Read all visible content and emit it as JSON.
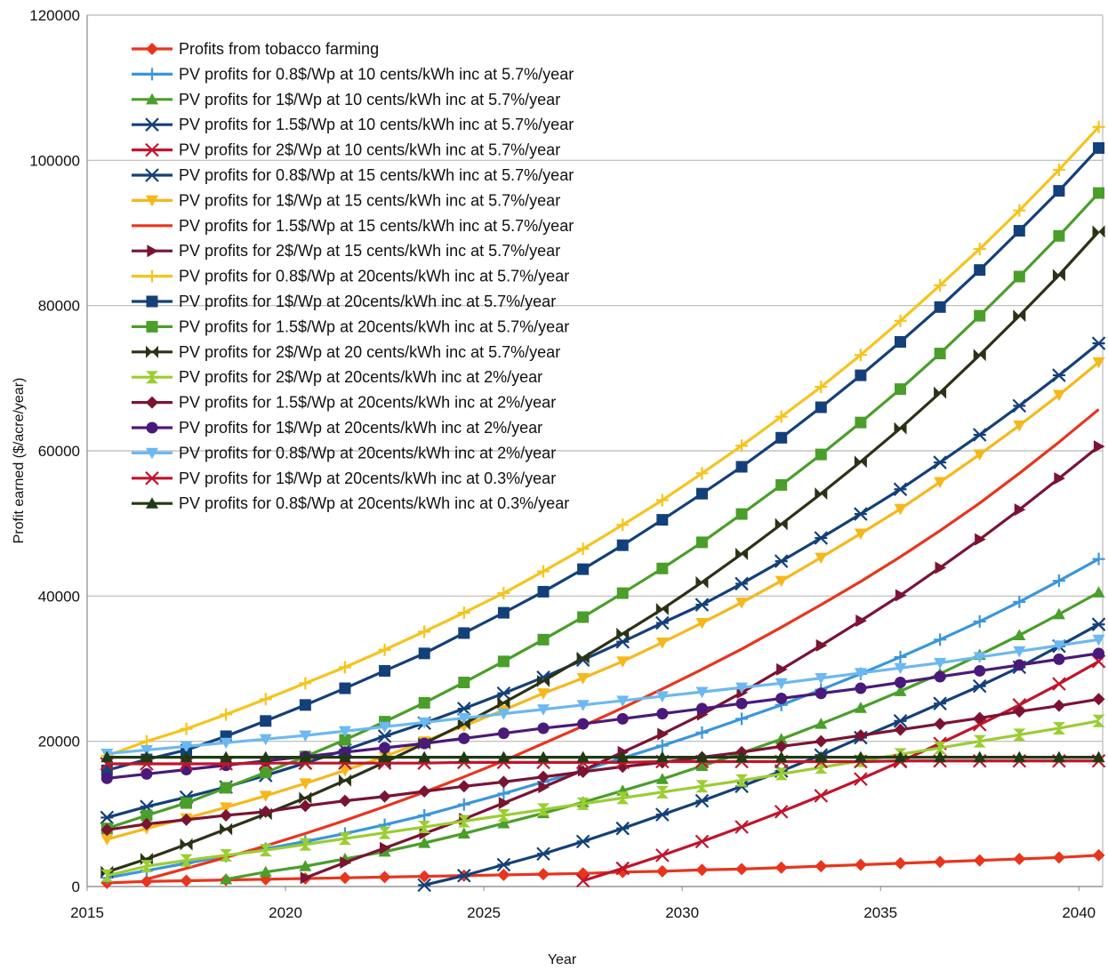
{
  "chart_data": {
    "type": "line",
    "title": "",
    "xlabel": "Year",
    "ylabel": "Profit earned ($/acre/year)",
    "xlim": [
      2015,
      2040.6
    ],
    "ylim": [
      0,
      120000
    ],
    "x_ticks": [
      2015,
      2020,
      2025,
      2030,
      2035,
      2040
    ],
    "y_ticks": [
      0,
      20000,
      40000,
      60000,
      80000,
      100000,
      120000
    ],
    "grid": "horizontal",
    "legend_position": "top-left",
    "x": [
      2015.5,
      2016.5,
      2017.5,
      2018.5,
      2019.5,
      2020.5,
      2021.5,
      2022.5,
      2023.5,
      2024.5,
      2025.5,
      2026.5,
      2027.5,
      2028.5,
      2029.5,
      2030.5,
      2031.5,
      2032.5,
      2033.5,
      2034.5,
      2035.5,
      2036.5,
      2037.5,
      2038.5,
      2039.5,
      2040.5
    ],
    "series": [
      {
        "name": "Profits from tobacco farming",
        "color": "#e8351e",
        "marker": "diamond",
        "values": [
          500,
          700,
          800,
          900,
          1000,
          1100,
          1200,
          1300,
          1400,
          1500,
          1600,
          1700,
          1800,
          2000,
          2100,
          2300,
          2400,
          2600,
          2800,
          3000,
          3200,
          3400,
          3600,
          3800,
          4000,
          4300
        ]
      },
      {
        "name": "PV profits for 0.8$/Wp at 10 cents/kWh inc at 5.7%/year",
        "color": "#3a96dc",
        "marker": "plus",
        "values": [
          1200,
          2200,
          3200,
          4200,
          5200,
          6200,
          7300,
          8500,
          9800,
          11300,
          12800,
          14400,
          16000,
          17700,
          19400,
          21200,
          23100,
          25000,
          27100,
          29300,
          31600,
          34000,
          36500,
          39200,
          42100,
          45100
        ]
      },
      {
        "name": "PV profits for 1$/Wp at 10 cents/kWh inc at 5.7%/year",
        "color": "#4a9e2a",
        "marker": "triangle",
        "values": [
          null,
          null,
          null,
          1000,
          2000,
          2800,
          3800,
          4800,
          6000,
          7300,
          8700,
          10100,
          11600,
          13200,
          14800,
          16600,
          18400,
          20300,
          22400,
          24600,
          26900,
          29300,
          31900,
          34600,
          37500,
          40500
        ]
      },
      {
        "name": "PV profits for 1.5$/Wp at 10 cents/kWh inc at 5.7%/year",
        "color": "#14407a",
        "marker": "star",
        "values": [
          null,
          null,
          null,
          null,
          null,
          null,
          null,
          null,
          200,
          1500,
          3000,
          4500,
          6200,
          8000,
          9900,
          11800,
          13800,
          15900,
          18100,
          20500,
          22800,
          25200,
          27600,
          30200,
          33100,
          36100
        ]
      },
      {
        "name": "PV profits for 2$/Wp at 10 cents/kWh inc at 5.7%/year",
        "color": "#c0152b",
        "marker": "x",
        "values": [
          null,
          null,
          null,
          null,
          null,
          null,
          null,
          null,
          null,
          null,
          null,
          null,
          800,
          2500,
          4300,
          6200,
          8200,
          10300,
          12500,
          14800,
          17200,
          19700,
          22300,
          25000,
          27900,
          31000
        ]
      },
      {
        "name": "PV profits for 0.8$/Wp at 15 cents/kWh inc at 5.7%/year",
        "color": "#14407a",
        "marker": "star",
        "values": [
          9500,
          11000,
          12300,
          13700,
          15300,
          17000,
          18800,
          20700,
          22500,
          24500,
          26600,
          28800,
          31200,
          33700,
          36300,
          38800,
          41700,
          44800,
          48000,
          51300,
          54700,
          58400,
          62200,
          66200,
          70400,
          74800
        ]
      },
      {
        "name": "PV profits for 1$/Wp at 15 cents/kWh inc at 5.7%/year",
        "color": "#f5b81c",
        "marker": "triangle-down",
        "values": [
          6500,
          8000,
          9400,
          10900,
          12500,
          14200,
          16000,
          17900,
          20000,
          22100,
          24300,
          26600,
          28700,
          31000,
          33600,
          36300,
          39100,
          42100,
          45300,
          48600,
          52000,
          55700,
          59500,
          63500,
          67700,
          72200
        ]
      },
      {
        "name": "PV profits for 1.5$/Wp at 15 cents/kWh inc at 5.7%/year",
        "color": "#e8351e",
        "marker": "dash",
        "values": [
          null,
          1000,
          2500,
          4000,
          5600,
          7300,
          9100,
          11000,
          13000,
          15100,
          17300,
          19700,
          22100,
          24600,
          27200,
          29900,
          32700,
          35700,
          38800,
          42000,
          45400,
          49000,
          52800,
          56900,
          61200,
          65700
        ]
      },
      {
        "name": "PV profits for 2$/Wp at 15 cents/kWh inc at 5.7%/year",
        "color": "#7a1432",
        "marker": "triangle-right",
        "values": [
          null,
          null,
          null,
          null,
          null,
          1200,
          3300,
          5300,
          7300,
          9300,
          11500,
          13700,
          16000,
          18500,
          21000,
          23700,
          26700,
          29900,
          33200,
          36600,
          40100,
          43900,
          47800,
          51900,
          56200,
          60600
        ]
      },
      {
        "name": "PV profits for 0.8$/Wp at 20cents/kWh inc at 5.7%/year",
        "color": "#f5c41c",
        "marker": "plus",
        "values": [
          18000,
          20000,
          21700,
          23700,
          25800,
          28000,
          30200,
          32600,
          35100,
          37700,
          40400,
          43400,
          46500,
          49800,
          53200,
          56900,
          60700,
          64700,
          68800,
          73200,
          77900,
          82800,
          87800,
          93100,
          98700,
          104600
        ]
      },
      {
        "name": "PV profits for 1$/Wp at 20cents/kWh inc at 5.7%/year",
        "color": "#14407a",
        "marker": "square",
        "values": [
          16000,
          17500,
          18800,
          20700,
          22800,
          25000,
          27300,
          29700,
          32100,
          34900,
          37700,
          40600,
          43700,
          47000,
          50500,
          54100,
          57800,
          61800,
          66000,
          70400,
          75000,
          79800,
          84900,
          90300,
          95800,
          101700
        ]
      },
      {
        "name": "PV profits for 1.5$/Wp at 20cents/kWh inc at 5.7%/year",
        "color": "#4a9e2a",
        "marker": "square",
        "values": [
          8000,
          9800,
          11500,
          13600,
          15700,
          17900,
          20200,
          22700,
          25300,
          28100,
          31000,
          34000,
          37100,
          40400,
          43800,
          47400,
          51300,
          55300,
          59500,
          63900,
          68500,
          73400,
          78600,
          84000,
          89600,
          95500
        ]
      },
      {
        "name": "PV profits for 2$/Wp at 20 cents/kWh inc at 5.7%/year",
        "color": "#2a3316",
        "marker": "bowtie",
        "values": [
          2000,
          3800,
          5800,
          7900,
          10000,
          12200,
          14600,
          17100,
          19700,
          22400,
          25300,
          28300,
          31500,
          34800,
          38200,
          41900,
          45800,
          49900,
          54100,
          58500,
          63100,
          68000,
          73200,
          78600,
          84200,
          90200
        ]
      },
      {
        "name": "PV profits for 2$/Wp at 20cents/kWh inc at 2%/year",
        "color": "#9acd32",
        "marker": "hourglass",
        "values": [
          1500,
          2800,
          3600,
          4300,
          5000,
          5800,
          6600,
          7400,
          8200,
          9000,
          9800,
          10600,
          11400,
          12200,
          13000,
          13800,
          14600,
          15500,
          16400,
          17300,
          18200,
          19100,
          20000,
          20900,
          21800,
          22800
        ]
      },
      {
        "name": "PV profits for 1.5$/Wp at 20cents/kWh inc at 2%/year",
        "color": "#7a1432",
        "marker": "diamond",
        "values": [
          7800,
          8600,
          9200,
          9800,
          10300,
          11100,
          11800,
          12400,
          13100,
          13800,
          14400,
          15100,
          15800,
          16500,
          17100,
          17800,
          18500,
          19300,
          20000,
          20800,
          21600,
          22400,
          23200,
          24100,
          24900,
          25800
        ]
      },
      {
        "name": "PV profits for 1$/Wp at 20cents/kWh inc at 2%/year",
        "color": "#4a1a7a",
        "marker": "circle",
        "values": [
          14900,
          15500,
          16100,
          16700,
          17300,
          17900,
          18500,
          19100,
          19700,
          20400,
          21100,
          21800,
          22400,
          23100,
          23800,
          24500,
          25200,
          25900,
          26600,
          27300,
          28100,
          28900,
          29700,
          30500,
          31300,
          32100
        ]
      },
      {
        "name": "PV profits for 0.8$/Wp at 20cents/kWh inc at 2%/year",
        "color": "#6cb8f0",
        "marker": "triangle-down",
        "values": [
          18300,
          18800,
          19300,
          19800,
          20300,
          20800,
          21400,
          22000,
          22600,
          23200,
          23800,
          24400,
          25000,
          25600,
          26200,
          26800,
          27400,
          28000,
          28700,
          29400,
          30100,
          30800,
          31600,
          32400,
          33200,
          34000
        ]
      },
      {
        "name": "PV profits for 1$/Wp at 20cents/kWh inc at 0.3%/year",
        "color": "#c0152b",
        "marker": "x",
        "values": [
          16900,
          16900,
          16900,
          16900,
          17000,
          17000,
          17000,
          17000,
          17000,
          17100,
          17100,
          17100,
          17100,
          17100,
          17200,
          17200,
          17200,
          17200,
          17200,
          17200,
          17300,
          17300,
          17300,
          17300,
          17300,
          17300
        ]
      },
      {
        "name": "PV profits for 0.8$/Wp at 20cents/kWh inc at 0.3%/year",
        "color": "#1f3a14",
        "marker": "triangle",
        "values": [
          17800,
          17800,
          17800,
          17800,
          17800,
          17800,
          17800,
          17800,
          17800,
          17800,
          17800,
          17800,
          17800,
          17800,
          17800,
          17800,
          17800,
          17800,
          17800,
          17800,
          17800,
          17800,
          17800,
          17800,
          17800,
          17800
        ]
      }
    ]
  }
}
